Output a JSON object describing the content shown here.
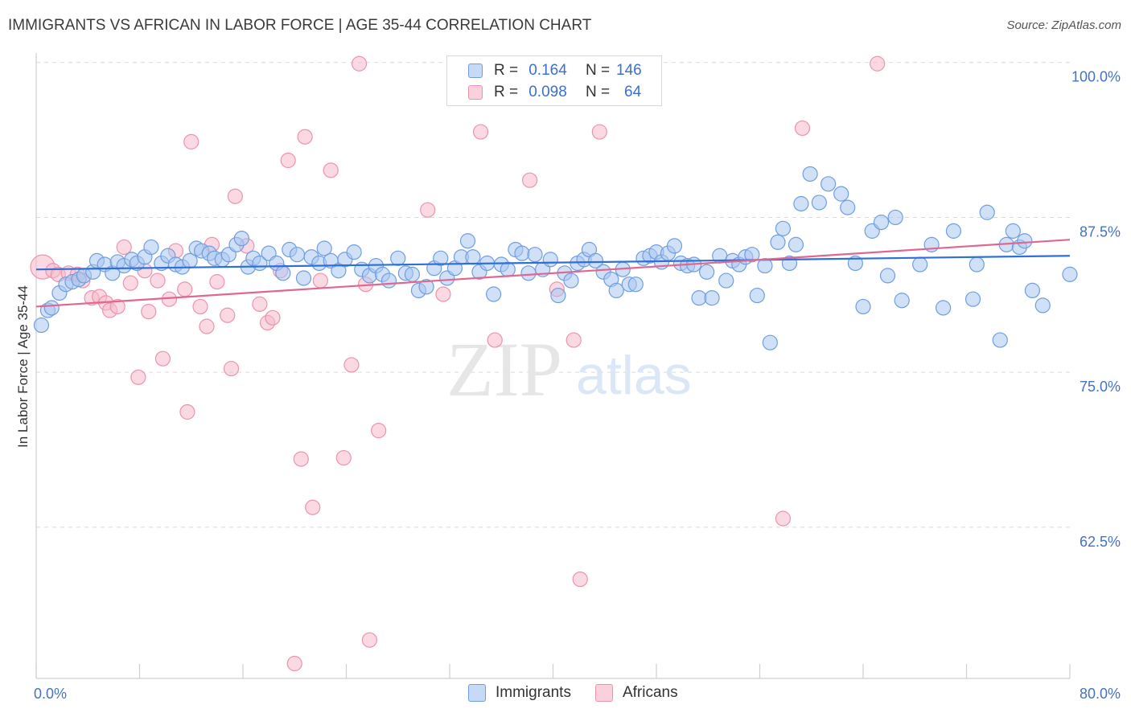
{
  "title": "IMMIGRANTS VS AFRICAN IN LABOR FORCE | AGE 35-44 CORRELATION CHART",
  "source": "Source: ZipAtlas.com",
  "watermark": {
    "zip": "ZIP",
    "atlas": "atlas"
  },
  "colors": {
    "immigrants_fill": "#a9c6f0",
    "immigrants_stroke": "#6f9ee0",
    "immigrants_line": "#2f6fd6",
    "africans_fill": "#f5b9cb",
    "africans_stroke": "#ec93ae",
    "africans_line": "#e0678f",
    "tick_text": "#4472c4",
    "grid": "#d9d9d9"
  },
  "legend": {
    "rows": [
      {
        "series": "immigrants",
        "r_label": "R =",
        "r_value": "0.164",
        "n_label": "N =",
        "n_value": "146"
      },
      {
        "series": "africans",
        "r_label": "R =",
        "r_value": "0.098",
        "n_label": "N =",
        "n_value": "64"
      }
    ]
  },
  "bottom_legend": [
    {
      "series": "immigrants",
      "label": "Immigrants"
    },
    {
      "series": "africans",
      "label": "Africans"
    }
  ],
  "chart_data": {
    "type": "scatter",
    "title": "IMMIGRANTS VS AFRICAN IN LABOR FORCE | AGE 35-44 CORRELATION CHART",
    "xlabel": "",
    "ylabel": "In Labor Force | Age 35-44",
    "xlim": [
      0,
      80
    ],
    "ylim": [
      50.3,
      100.5
    ],
    "x_tick_labels": [
      {
        "value": 0,
        "label": "0.0%"
      },
      {
        "value": 80,
        "label": "80.0%"
      }
    ],
    "y_ticks": [
      {
        "value": 100,
        "label": "100.0%"
      },
      {
        "value": 87.5,
        "label": "87.5%"
      },
      {
        "value": 75,
        "label": "75.0%"
      },
      {
        "value": 62.5,
        "label": "62.5%"
      }
    ],
    "grid": "horizontal dashed",
    "legend_position": "top-center",
    "series": [
      {
        "name": "Immigrants",
        "key": "immigrants",
        "trend": {
          "x0": 0,
          "y0": 83.3,
          "x1": 80,
          "y1": 84.4
        },
        "points": [
          [
            0.4,
            78.8
          ],
          [
            0.9,
            80.0
          ],
          [
            1.2,
            80.2
          ],
          [
            1.8,
            81.4
          ],
          [
            2.3,
            82.1
          ],
          [
            2.8,
            82.3
          ],
          [
            3.3,
            82.5
          ],
          [
            3.7,
            82.8
          ],
          [
            4.4,
            83.1
          ],
          [
            4.7,
            84.0
          ],
          [
            5.3,
            83.7
          ],
          [
            5.9,
            83.0
          ],
          [
            6.3,
            83.9
          ],
          [
            6.8,
            83.6
          ],
          [
            7.4,
            84.1
          ],
          [
            7.8,
            83.8
          ],
          [
            8.4,
            84.3
          ],
          [
            8.9,
            85.1
          ],
          [
            9.7,
            83.8
          ],
          [
            10.2,
            84.4
          ],
          [
            10.8,
            83.7
          ],
          [
            11.3,
            83.5
          ],
          [
            11.9,
            84.0
          ],
          [
            12.4,
            85.0
          ],
          [
            12.8,
            84.8
          ],
          [
            13.4,
            84.6
          ],
          [
            13.8,
            84.2
          ],
          [
            14.4,
            84.1
          ],
          [
            14.9,
            84.5
          ],
          [
            15.5,
            85.3
          ],
          [
            15.9,
            85.8
          ],
          [
            16.4,
            83.5
          ],
          [
            16.8,
            84.2
          ],
          [
            17.3,
            83.8
          ],
          [
            18.0,
            84.6
          ],
          [
            18.6,
            83.8
          ],
          [
            19.1,
            83.0
          ],
          [
            19.6,
            84.9
          ],
          [
            20.2,
            84.5
          ],
          [
            20.7,
            82.6
          ],
          [
            21.3,
            84.3
          ],
          [
            21.9,
            83.8
          ],
          [
            22.3,
            85.0
          ],
          [
            22.8,
            84.0
          ],
          [
            23.4,
            83.2
          ],
          [
            23.9,
            84.1
          ],
          [
            24.6,
            84.7
          ],
          [
            25.2,
            83.3
          ],
          [
            25.8,
            82.8
          ],
          [
            26.3,
            83.6
          ],
          [
            26.8,
            82.9
          ],
          [
            27.3,
            82.4
          ],
          [
            28.0,
            84.2
          ],
          [
            28.6,
            83.0
          ],
          [
            29.1,
            82.9
          ],
          [
            29.6,
            81.6
          ],
          [
            30.2,
            81.9
          ],
          [
            30.8,
            83.4
          ],
          [
            31.3,
            84.2
          ],
          [
            31.8,
            82.6
          ],
          [
            32.4,
            83.4
          ],
          [
            32.9,
            84.3
          ],
          [
            33.4,
            85.6
          ],
          [
            33.8,
            84.3
          ],
          [
            34.3,
            83.1
          ],
          [
            34.9,
            83.8
          ],
          [
            35.4,
            81.3
          ],
          [
            36.0,
            83.7
          ],
          [
            36.5,
            83.3
          ],
          [
            37.1,
            84.9
          ],
          [
            37.6,
            84.6
          ],
          [
            38.1,
            83.0
          ],
          [
            38.6,
            84.5
          ],
          [
            39.2,
            83.3
          ],
          [
            39.8,
            84.1
          ],
          [
            40.4,
            81.2
          ],
          [
            40.9,
            83.0
          ],
          [
            41.4,
            82.4
          ],
          [
            41.9,
            83.8
          ],
          [
            42.4,
            84.1
          ],
          [
            42.8,
            84.9
          ],
          [
            43.3,
            84.0
          ],
          [
            43.9,
            83.1
          ],
          [
            44.5,
            82.5
          ],
          [
            44.9,
            81.6
          ],
          [
            45.4,
            83.3
          ],
          [
            45.9,
            82.1
          ],
          [
            46.4,
            82.1
          ],
          [
            47.0,
            84.2
          ],
          [
            47.5,
            84.4
          ],
          [
            48.0,
            84.7
          ],
          [
            48.4,
            83.9
          ],
          [
            48.9,
            84.6
          ],
          [
            49.4,
            85.2
          ],
          [
            49.9,
            83.8
          ],
          [
            50.4,
            83.6
          ],
          [
            50.9,
            83.7
          ],
          [
            51.3,
            81.0
          ],
          [
            51.9,
            83.1
          ],
          [
            52.3,
            81.0
          ],
          [
            52.9,
            84.4
          ],
          [
            53.4,
            82.4
          ],
          [
            53.9,
            84.0
          ],
          [
            54.4,
            83.7
          ],
          [
            54.9,
            84.3
          ],
          [
            55.4,
            84.5
          ],
          [
            55.8,
            81.2
          ],
          [
            56.4,
            83.6
          ],
          [
            56.8,
            77.4
          ],
          [
            57.4,
            85.5
          ],
          [
            57.8,
            86.6
          ],
          [
            58.3,
            83.8
          ],
          [
            58.8,
            85.3
          ],
          [
            59.2,
            88.6
          ],
          [
            59.9,
            91.0
          ],
          [
            60.6,
            88.7
          ],
          [
            61.3,
            90.2
          ],
          [
            62.3,
            89.4
          ],
          [
            62.8,
            88.3
          ],
          [
            63.4,
            83.8
          ],
          [
            64.0,
            80.3
          ],
          [
            64.7,
            86.4
          ],
          [
            65.4,
            87.1
          ],
          [
            65.9,
            82.8
          ],
          [
            66.5,
            87.5
          ],
          [
            67.0,
            80.8
          ],
          [
            68.4,
            83.7
          ],
          [
            69.3,
            85.3
          ],
          [
            70.2,
            80.2
          ],
          [
            71.0,
            86.4
          ],
          [
            72.5,
            80.9
          ],
          [
            72.8,
            83.7
          ],
          [
            73.6,
            87.9
          ],
          [
            74.6,
            77.6
          ],
          [
            75.1,
            85.3
          ],
          [
            75.6,
            86.4
          ],
          [
            76.1,
            85.1
          ],
          [
            76.5,
            85.6
          ],
          [
            77.1,
            81.6
          ],
          [
            77.9,
            80.4
          ],
          [
            80.0,
            82.9
          ]
        ]
      },
      {
        "name": "Africans",
        "key": "africans",
        "trend": {
          "x0": 0,
          "y0": 80.3,
          "x1": 80,
          "y1": 85.7
        },
        "points": [
          [
            0.5,
            83.5
          ],
          [
            1.3,
            83.2
          ],
          [
            1.7,
            82.9
          ],
          [
            2.5,
            83.0
          ],
          [
            3.2,
            82.9
          ],
          [
            3.6,
            82.4
          ],
          [
            4.3,
            81.0
          ],
          [
            4.9,
            81.1
          ],
          [
            5.4,
            80.6
          ],
          [
            5.7,
            80.0
          ],
          [
            6.3,
            80.3
          ],
          [
            6.8,
            85.1
          ],
          [
            7.3,
            82.2
          ],
          [
            7.9,
            74.6
          ],
          [
            8.4,
            83.2
          ],
          [
            8.7,
            79.9
          ],
          [
            9.4,
            82.4
          ],
          [
            9.8,
            76.1
          ],
          [
            10.3,
            80.9
          ],
          [
            10.8,
            84.8
          ],
          [
            11.5,
            81.7
          ],
          [
            11.7,
            71.8
          ],
          [
            12.0,
            93.6
          ],
          [
            12.7,
            80.3
          ],
          [
            13.2,
            78.7
          ],
          [
            13.6,
            85.3
          ],
          [
            14.0,
            82.3
          ],
          [
            14.8,
            79.6
          ],
          [
            15.1,
            75.3
          ],
          [
            15.4,
            89.2
          ],
          [
            16.3,
            85.2
          ],
          [
            17.3,
            80.5
          ],
          [
            17.9,
            79.0
          ],
          [
            18.3,
            79.4
          ],
          [
            18.9,
            83.2
          ],
          [
            19.5,
            92.1
          ],
          [
            20.0,
            51.5
          ],
          [
            20.5,
            68.0
          ],
          [
            20.8,
            94.0
          ],
          [
            21.4,
            64.1
          ],
          [
            22.0,
            82.4
          ],
          [
            22.8,
            91.3
          ],
          [
            23.8,
            68.1
          ],
          [
            24.4,
            75.6
          ],
          [
            25.0,
            99.9
          ],
          [
            25.5,
            82.1
          ],
          [
            25.8,
            53.4
          ],
          [
            26.5,
            70.3
          ],
          [
            30.3,
            88.1
          ],
          [
            31.5,
            81.3
          ],
          [
            33.5,
            99.9
          ],
          [
            34.4,
            94.4
          ],
          [
            35.5,
            77.6
          ],
          [
            38.2,
            90.5
          ],
          [
            40.3,
            81.7
          ],
          [
            41.6,
            77.6
          ],
          [
            42.1,
            58.3
          ],
          [
            43.6,
            94.4
          ],
          [
            57.8,
            63.2
          ],
          [
            59.3,
            94.7
          ],
          [
            65.1,
            99.9
          ]
        ]
      }
    ]
  }
}
